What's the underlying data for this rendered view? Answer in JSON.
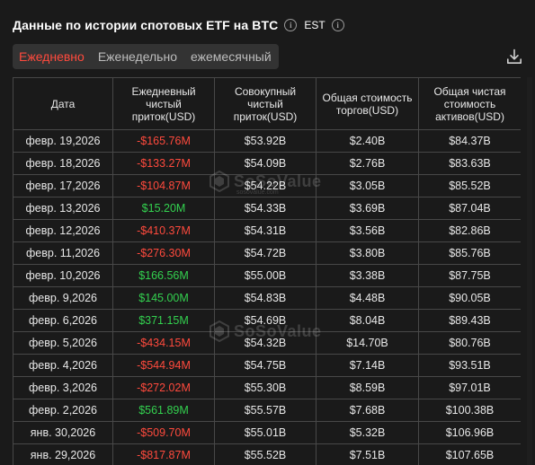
{
  "header": {
    "title": "Данные по истории спотовых ETF на BTC",
    "timezone": "EST"
  },
  "tabs": [
    {
      "label": "Ежедневно",
      "active": true
    },
    {
      "label": "Еженедельно",
      "active": false
    },
    {
      "label": "ежемесячный",
      "active": false
    }
  ],
  "table": {
    "columns": [
      "Дата",
      "Ежедневный чистый приток(USD)",
      "Совокупный чистый приток(USD)",
      "Общая стоимость торгов(USD)",
      "Общая чистая стоимость активов(USD)"
    ],
    "rows": [
      {
        "date": "февр. 19,2026",
        "daily": "-$165.76M",
        "sign": "neg",
        "cumulative": "$53.92B",
        "traded": "$2.40B",
        "assets": "$84.37B"
      },
      {
        "date": "февр. 18,2026",
        "daily": "-$133.27M",
        "sign": "neg",
        "cumulative": "$54.09B",
        "traded": "$2.76B",
        "assets": "$83.63B"
      },
      {
        "date": "февр. 17,2026",
        "daily": "-$104.87M",
        "sign": "neg",
        "cumulative": "$54.22B",
        "traded": "$3.05B",
        "assets": "$85.52B"
      },
      {
        "date": "февр. 13,2026",
        "daily": "$15.20M",
        "sign": "pos",
        "cumulative": "$54.33B",
        "traded": "$3.69B",
        "assets": "$87.04B"
      },
      {
        "date": "февр. 12,2026",
        "daily": "-$410.37M",
        "sign": "neg",
        "cumulative": "$54.31B",
        "traded": "$3.56B",
        "assets": "$82.86B"
      },
      {
        "date": "февр. 11,2026",
        "daily": "-$276.30M",
        "sign": "neg",
        "cumulative": "$54.72B",
        "traded": "$3.80B",
        "assets": "$85.76B"
      },
      {
        "date": "февр. 10,2026",
        "daily": "$166.56M",
        "sign": "pos",
        "cumulative": "$55.00B",
        "traded": "$3.38B",
        "assets": "$87.75B"
      },
      {
        "date": "февр. 9,2026",
        "daily": "$145.00M",
        "sign": "pos",
        "cumulative": "$54.83B",
        "traded": "$4.48B",
        "assets": "$90.05B"
      },
      {
        "date": "февр. 6,2026",
        "daily": "$371.15M",
        "sign": "pos",
        "cumulative": "$54.69B",
        "traded": "$8.04B",
        "assets": "$89.43B"
      },
      {
        "date": "февр. 5,2026",
        "daily": "-$434.15M",
        "sign": "neg",
        "cumulative": "$54.32B",
        "traded": "$14.70B",
        "assets": "$80.76B"
      },
      {
        "date": "февр. 4,2026",
        "daily": "-$544.94M",
        "sign": "neg",
        "cumulative": "$54.75B",
        "traded": "$7.14B",
        "assets": "$93.51B"
      },
      {
        "date": "февр. 3,2026",
        "daily": "-$272.02M",
        "sign": "neg",
        "cumulative": "$55.30B",
        "traded": "$8.59B",
        "assets": "$97.01B"
      },
      {
        "date": "февр. 2,2026",
        "daily": "$561.89M",
        "sign": "pos",
        "cumulative": "$55.57B",
        "traded": "$7.68B",
        "assets": "$100.38B"
      },
      {
        "date": "янв. 30,2026",
        "daily": "-$509.70M",
        "sign": "neg",
        "cumulative": "$55.01B",
        "traded": "$5.32B",
        "assets": "$106.96B"
      },
      {
        "date": "янв. 29,2026",
        "daily": "-$817.87M",
        "sign": "neg",
        "cumulative": "$55.52B",
        "traded": "$7.51B",
        "assets": "$107.65B"
      }
    ]
  },
  "watermark": {
    "brand": "SoSoValue",
    "sub": "sosovalue.com"
  },
  "colors": {
    "negative": "#ff4a3d",
    "positive": "#33d14f",
    "active_tab": "#ff4a3d",
    "background": "#1a1a1a",
    "border": "#484848"
  },
  "icons": [
    "info-icon",
    "download-icon",
    "sosovalue-logo-icon"
  ]
}
